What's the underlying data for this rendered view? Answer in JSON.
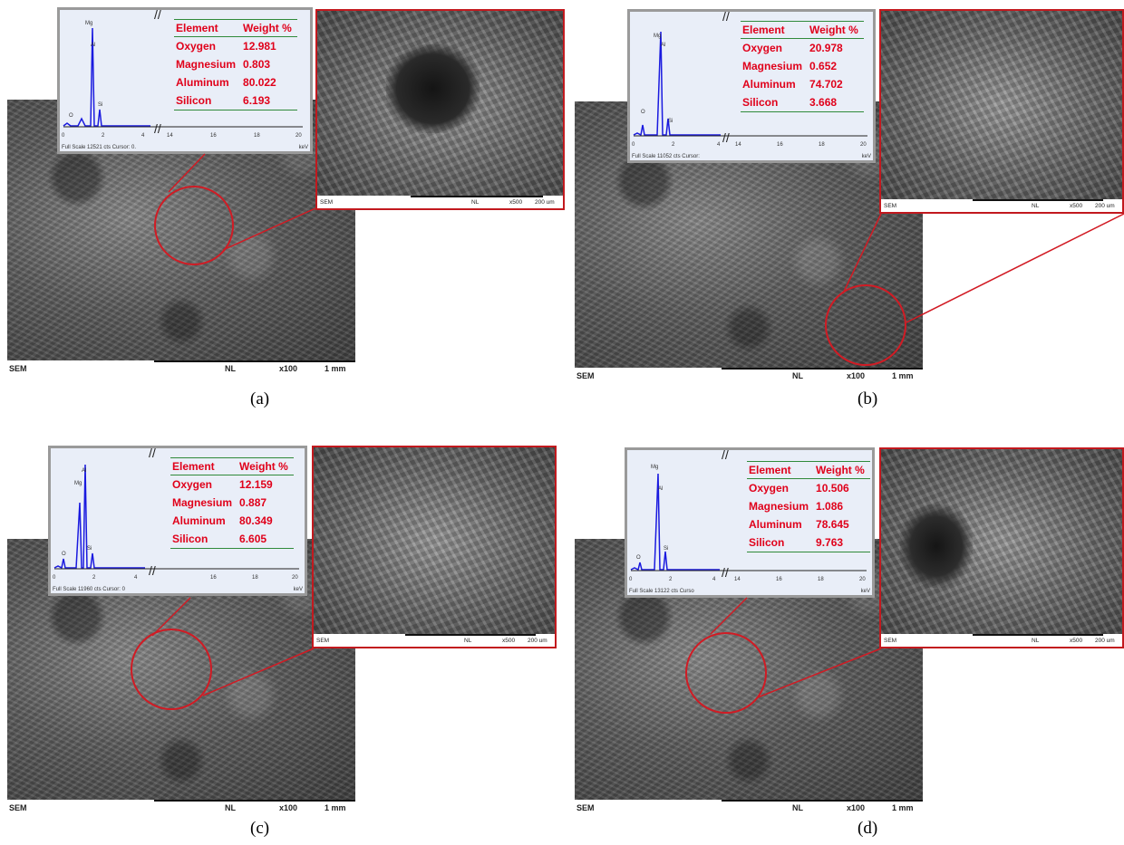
{
  "panels": [
    {
      "caption": "(a)",
      "sem": {
        "label": "SEM",
        "nl": "NL",
        "mag": "x100",
        "scale": "1 mm"
      },
      "zoom": {
        "label": "SEM",
        "nl": "NL",
        "mag": "x500",
        "scale": "200 um"
      },
      "eds": {
        "peaks": [
          "Mg",
          "Al",
          "O",
          "Si"
        ],
        "axis_left": [
          "0",
          "2",
          "4"
        ],
        "axis_right": [
          "14",
          "16",
          "18",
          "20"
        ],
        "full_scale": "Full Scale 12521 cts Cursor: 0.",
        "unit": "keV",
        "headers": [
          "Element",
          "Weight %"
        ],
        "rows": [
          [
            "Oxygen",
            "12.981"
          ],
          [
            "Magnesium",
            "0.803"
          ],
          [
            "Aluminum",
            "80.022"
          ],
          [
            "Silicon",
            "6.193"
          ]
        ]
      }
    },
    {
      "caption": "(b)",
      "sem": {
        "label": "SEM",
        "nl": "NL",
        "mag": "x100",
        "scale": "1 mm"
      },
      "zoom": {
        "label": "SEM",
        "nl": "NL",
        "mag": "x500",
        "scale": "200 um"
      },
      "eds": {
        "peaks": [
          "Mg",
          "Al",
          "O",
          "Si"
        ],
        "axis_left": [
          "0",
          "2",
          "4"
        ],
        "axis_right": [
          "14",
          "16",
          "18",
          "20"
        ],
        "full_scale": "Full Scale 11052 cts Cursor:",
        "unit": "keV",
        "headers": [
          "Element",
          "Weight %"
        ],
        "rows": [
          [
            "Oxygen",
            "20.978"
          ],
          [
            "Magnesium",
            "0.652"
          ],
          [
            "Aluminum",
            "74.702"
          ],
          [
            "Silicon",
            "3.668"
          ]
        ]
      }
    },
    {
      "caption": "(c)",
      "sem": {
        "label": "SEM",
        "nl": "NL",
        "mag": "x100",
        "scale": "1 mm"
      },
      "zoom": {
        "label": "SEM",
        "nl": "NL",
        "mag": "x500",
        "scale": "200 um"
      },
      "eds": {
        "peaks": [
          "Al",
          "Mg",
          "O",
          "Si"
        ],
        "axis_left": [
          "0",
          "2",
          "4"
        ],
        "axis_right": [
          "16",
          "18",
          "20"
        ],
        "full_scale": "Full Scale 11960 cts Cursor: 0",
        "unit": "keV",
        "headers": [
          "Element",
          "Weight %"
        ],
        "rows": [
          [
            "Oxygen",
            "12.159"
          ],
          [
            "Magnesium",
            "0.887"
          ],
          [
            "Aluminum",
            "80.349"
          ],
          [
            "Silicon",
            "6.605"
          ]
        ]
      }
    },
    {
      "caption": "(d)",
      "sem": {
        "label": "SEM",
        "nl": "NL",
        "mag": "x100",
        "scale": "1 mm"
      },
      "zoom": {
        "label": "SEM",
        "nl": "NL",
        "mag": "x500",
        "scale": "200 um"
      },
      "eds": {
        "peaks": [
          "Mg",
          "Al",
          "O",
          "Si"
        ],
        "axis_left": [
          "0",
          "2",
          "4"
        ],
        "axis_right": [
          "14",
          "16",
          "18",
          "20"
        ],
        "full_scale": "Full Scale 13122 cts Curso",
        "unit": "keV",
        "headers": [
          "Element",
          "Weight %"
        ],
        "rows": [
          [
            "Oxygen",
            "10.506"
          ],
          [
            "Magnesium",
            "1.086"
          ],
          [
            "Aluminum",
            "78.645"
          ],
          [
            "Silicon",
            "9.763"
          ]
        ]
      }
    }
  ],
  "colors": {
    "highlight": "#d11b24",
    "table_text": "#e0001a",
    "spectrum": "#1a1adf",
    "table_rule": "#2f8a3a"
  }
}
